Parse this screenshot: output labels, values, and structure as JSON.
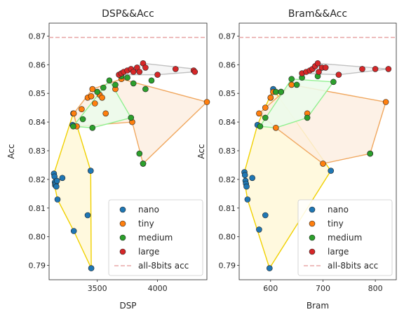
{
  "colors": {
    "nano": "#1f77b4",
    "tiny": "#ff7f0e",
    "medium": "#2ca02c",
    "large": "#d62728",
    "ref": "#e8a8a8",
    "hull_nano_line": "#f0d000",
    "hull_nano_fill": "#fff8d8",
    "hull_tiny_line": "#f0a860",
    "hull_tiny_fill": "#fdeee2",
    "hull_medium_line": "#90f090",
    "hull_medium_fill": "#ebfbeb",
    "hull_large_line": "#c0c0c0",
    "hull_large_fill": "#f4f4f4"
  },
  "chart_data": [
    {
      "type": "scatter",
      "title": "DSP&&Acc",
      "xlabel": "DSP",
      "ylabel": "Acc",
      "xlim": [
        3100,
        4410
      ],
      "ylim": [
        0.785,
        0.8745
      ],
      "xticks": [
        3500,
        4000
      ],
      "yticks": [
        0.79,
        0.8,
        0.81,
        0.82,
        0.83,
        0.84,
        0.85,
        0.86,
        0.87
      ],
      "ytick_labels": [
        "0.79",
        "0.80",
        "0.81",
        "0.82",
        "0.83",
        "0.84",
        "0.85",
        "0.86",
        "0.87"
      ],
      "reference_line": {
        "label": "all-8bits acc",
        "y": 0.8695
      },
      "legend": {
        "location": "lower right",
        "entries": [
          "nano",
          "tiny",
          "medium",
          "large",
          "all-8bits acc"
        ]
      },
      "series": [
        {
          "name": "nano",
          "points": [
            [
              3140,
              0.822
            ],
            [
              3145,
              0.821
            ],
            [
              3148,
              0.819
            ],
            [
              3150,
              0.818
            ],
            [
              3155,
              0.8185
            ],
            [
              3160,
              0.8175
            ],
            [
              3165,
              0.8195
            ],
            [
              3170,
              0.813
            ],
            [
              3210,
              0.8205
            ],
            [
              3295,
              0.839
            ],
            [
              3300,
              0.843
            ],
            [
              3305,
              0.802
            ],
            [
              3420,
              0.8075
            ],
            [
              3445,
              0.823
            ],
            [
              3450,
              0.789
            ]
          ],
          "hull": [
            [
              3140,
              0.822
            ],
            [
              3300,
              0.843
            ],
            [
              3445,
              0.823
            ],
            [
              3450,
              0.789
            ],
            [
              3305,
              0.802
            ],
            [
              3170,
              0.813
            ],
            [
              3140,
              0.819
            ]
          ]
        },
        {
          "name": "tiny",
          "points": [
            [
              3305,
              0.843
            ],
            [
              3330,
              0.8385
            ],
            [
              3370,
              0.8445
            ],
            [
              3420,
              0.8485
            ],
            [
              3450,
              0.849
            ],
            [
              3460,
              0.8515
            ],
            [
              3480,
              0.8465
            ],
            [
              3520,
              0.8495
            ],
            [
              3540,
              0.8485
            ],
            [
              3570,
              0.843
            ],
            [
              3650,
              0.8515
            ],
            [
              3700,
              0.855
            ],
            [
              3790,
              0.84
            ],
            [
              3880,
              0.8255
            ],
            [
              4410,
              0.847
            ]
          ],
          "hull": [
            [
              3305,
              0.843
            ],
            [
              3460,
              0.8515
            ],
            [
              3700,
              0.855
            ],
            [
              4410,
              0.847
            ],
            [
              3880,
              0.8255
            ],
            [
              3790,
              0.84
            ],
            [
              3330,
              0.8385
            ],
            [
              3305,
              0.843
            ]
          ]
        },
        {
          "name": "medium",
          "points": [
            [
              3300,
              0.8385
            ],
            [
              3380,
              0.841
            ],
            [
              3460,
              0.838
            ],
            [
              3500,
              0.8505
            ],
            [
              3550,
              0.852
            ],
            [
              3600,
              0.8545
            ],
            [
              3650,
              0.853
            ],
            [
              3700,
              0.856
            ],
            [
              3750,
              0.8555
            ],
            [
              3800,
              0.8535
            ],
            [
              3850,
              0.829
            ],
            [
              3880,
              0.8255
            ],
            [
              3900,
              0.8515
            ],
            [
              3950,
              0.8545
            ],
            [
              3780,
              0.8415
            ]
          ],
          "hull": [
            [
              3300,
              0.8385
            ],
            [
              3600,
              0.8545
            ],
            [
              3780,
              0.8415
            ],
            [
              3460,
              0.838
            ],
            [
              3300,
              0.8385
            ]
          ]
        },
        {
          "name": "large",
          "points": [
            [
              3680,
              0.8565
            ],
            [
              3700,
              0.857
            ],
            [
              3720,
              0.8575
            ],
            [
              3750,
              0.858
            ],
            [
              3780,
              0.8585
            ],
            [
              3800,
              0.8575
            ],
            [
              3830,
              0.859
            ],
            [
              3850,
              0.8575
            ],
            [
              3880,
              0.8605
            ],
            [
              3900,
              0.859
            ],
            [
              4000,
              0.8565
            ],
            [
              4150,
              0.8585
            ],
            [
              4300,
              0.858
            ],
            [
              4310,
              0.8575
            ]
          ],
          "hull": [
            [
              3680,
              0.8565
            ],
            [
              3880,
              0.8605
            ],
            [
              4310,
              0.8585
            ],
            [
              4310,
              0.8575
            ],
            [
              4000,
              0.8565
            ],
            [
              3680,
              0.8565
            ]
          ]
        }
      ]
    },
    {
      "type": "scatter",
      "title": "Bram&&Acc",
      "xlabel": "Bram",
      "ylabel": "Acc",
      "xlim": [
        540,
        840
      ],
      "ylim": [
        0.785,
        0.8745
      ],
      "xticks": [
        600,
        700,
        800
      ],
      "yticks": [
        0.79,
        0.8,
        0.81,
        0.82,
        0.83,
        0.84,
        0.85,
        0.86,
        0.87
      ],
      "ytick_labels": [
        "0.79",
        "0.80",
        "0.81",
        "0.82",
        "0.83",
        "0.84",
        "0.85",
        "0.86",
        "0.87"
      ],
      "reference_line": {
        "label": "all-8bits acc",
        "y": 0.8695
      },
      "legend": {
        "location": "lower right",
        "entries": [
          "nano",
          "tiny",
          "medium",
          "large",
          "all-8bits acc"
        ]
      },
      "series": [
        {
          "name": "nano",
          "points": [
            [
              550,
              0.8225
            ],
            [
              551,
              0.8215
            ],
            [
              552,
              0.8195
            ],
            [
              553,
              0.8185
            ],
            [
              554,
              0.8175
            ],
            [
              556,
              0.813
            ],
            [
              565,
              0.8205
            ],
            [
              575,
              0.839
            ],
            [
              578,
              0.8025
            ],
            [
              590,
              0.8075
            ],
            [
              598,
              0.789
            ],
            [
              600,
              0.8485
            ],
            [
              605,
              0.8515
            ],
            [
              715,
              0.823
            ]
          ],
          "hull": [
            [
              550,
              0.8225
            ],
            [
              575,
              0.839
            ],
            [
              605,
              0.8515
            ],
            [
              715,
              0.823
            ],
            [
              598,
              0.789
            ],
            [
              556,
              0.813
            ],
            [
              550,
              0.8195
            ]
          ]
        },
        {
          "name": "tiny",
          "points": [
            [
              578,
              0.843
            ],
            [
              590,
              0.845
            ],
            [
              600,
              0.8485
            ],
            [
              605,
              0.8505
            ],
            [
              610,
              0.838
            ],
            [
              620,
              0.8505
            ],
            [
              640,
              0.853
            ],
            [
              670,
              0.843
            ],
            [
              700,
              0.8255
            ],
            [
              790,
              0.829
            ],
            [
              820,
              0.847
            ]
          ],
          "hull": [
            [
              578,
              0.843
            ],
            [
              640,
              0.853
            ],
            [
              820,
              0.847
            ],
            [
              790,
              0.829
            ],
            [
              700,
              0.8255
            ],
            [
              610,
              0.838
            ],
            [
              578,
              0.843
            ]
          ]
        },
        {
          "name": "medium",
          "points": [
            [
              580,
              0.8385
            ],
            [
              590,
              0.8415
            ],
            [
              610,
              0.8505
            ],
            [
              620,
              0.8505
            ],
            [
              640,
              0.855
            ],
            [
              650,
              0.853
            ],
            [
              660,
              0.8555
            ],
            [
              670,
              0.8415
            ],
            [
              690,
              0.856
            ],
            [
              720,
              0.854
            ],
            [
              790,
              0.829
            ]
          ],
          "hull": [
            [
              580,
              0.8385
            ],
            [
              640,
              0.855
            ],
            [
              720,
              0.854
            ],
            [
              670,
              0.8415
            ],
            [
              610,
              0.838
            ],
            [
              580,
              0.8385
            ]
          ]
        },
        {
          "name": "large",
          "points": [
            [
              660,
              0.857
            ],
            [
              668,
              0.8575
            ],
            [
              675,
              0.858
            ],
            [
              680,
              0.8585
            ],
            [
              685,
              0.8595
            ],
            [
              690,
              0.8605
            ],
            [
              692,
              0.8575
            ],
            [
              698,
              0.859
            ],
            [
              705,
              0.859
            ],
            [
              730,
              0.8565
            ],
            [
              775,
              0.8585
            ],
            [
              800,
              0.8585
            ],
            [
              825,
              0.8585
            ]
          ],
          "hull": [
            [
              660,
              0.857
            ],
            [
              690,
              0.8605
            ],
            [
              825,
              0.8585
            ],
            [
              730,
              0.8565
            ],
            [
              660,
              0.857
            ]
          ]
        }
      ]
    }
  ]
}
